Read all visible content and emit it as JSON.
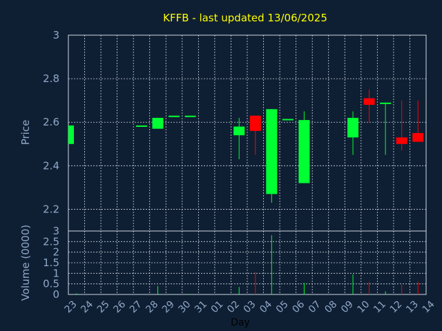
{
  "chart_data": {
    "type": "candlestick",
    "title": "KFFB - last updated 13/06/2025",
    "ylabel": "Price",
    "volume_ylabel": "Volume (0000)",
    "xlabel": "Day",
    "ylim": [
      2.1,
      3.0
    ],
    "volume_ylim": [
      0,
      3
    ],
    "price_ticks": [
      "2.2",
      "2.4",
      "2.6",
      "2.8",
      "3"
    ],
    "volume_ticks": [
      "0",
      "0.5",
      "1",
      "1.5",
      "2",
      "2.5",
      "3"
    ],
    "grid": true,
    "colors": {
      "background": "#0f1f33",
      "up": "#00ff33",
      "down": "#ff0000",
      "axis_text": "#8fa8c8",
      "title": "#ffff00",
      "grid": "#cfd8e3"
    },
    "categories": [
      "23",
      "24",
      "25",
      "26",
      "27",
      "28",
      "29",
      "30",
      "31",
      "01",
      "02",
      "03",
      "04",
      "05",
      "06",
      "07",
      "08",
      "09",
      "10",
      "11",
      "12",
      "13",
      "14"
    ],
    "candles": [
      {
        "x": "23",
        "open": 2.5,
        "high": 2.585,
        "low": 2.5,
        "close": 2.585,
        "volume": 0.05
      },
      {
        "x": "27",
        "open": 2.58,
        "high": 2.585,
        "low": 2.58,
        "close": 2.585,
        "volume": 0.02
      },
      {
        "x": "28",
        "open": 2.57,
        "high": 2.62,
        "low": 2.57,
        "close": 2.62,
        "volume": 0.4
      },
      {
        "x": "29",
        "open": 2.63,
        "high": 2.63,
        "low": 2.63,
        "close": 2.63,
        "volume": 0.02
      },
      {
        "x": "30",
        "open": 2.63,
        "high": 2.63,
        "low": 2.63,
        "close": 2.63,
        "volume": 0.02
      },
      {
        "x": "02",
        "open": 2.54,
        "high": 2.62,
        "low": 2.43,
        "close": 2.58,
        "volume": 0.35
      },
      {
        "x": "03",
        "open": 2.63,
        "high": 2.63,
        "low": 2.45,
        "close": 2.56,
        "volume": 1.05
      },
      {
        "x": "04",
        "open": 2.27,
        "high": 2.66,
        "low": 2.23,
        "close": 2.66,
        "volume": 2.8
      },
      {
        "x": "05",
        "open": 2.61,
        "high": 2.615,
        "low": 2.61,
        "close": 2.615,
        "volume": 0.02
      },
      {
        "x": "06",
        "open": 2.32,
        "high": 2.65,
        "low": 2.32,
        "close": 2.61,
        "volume": 0.55
      },
      {
        "x": "09",
        "open": 2.53,
        "high": 2.65,
        "low": 2.45,
        "close": 2.62,
        "volume": 0.95
      },
      {
        "x": "10",
        "open": 2.71,
        "high": 2.75,
        "low": 2.6,
        "close": 2.68,
        "volume": 0.6
      },
      {
        "x": "11",
        "open": 2.685,
        "high": 2.69,
        "low": 2.45,
        "close": 2.69,
        "volume": 0.15
      },
      {
        "x": "12",
        "open": 2.53,
        "high": 2.7,
        "low": 2.47,
        "close": 2.5,
        "volume": 0.45
      },
      {
        "x": "13",
        "open": 2.55,
        "high": 2.7,
        "low": 2.51,
        "close": 2.51,
        "volume": 0.6
      }
    ]
  }
}
